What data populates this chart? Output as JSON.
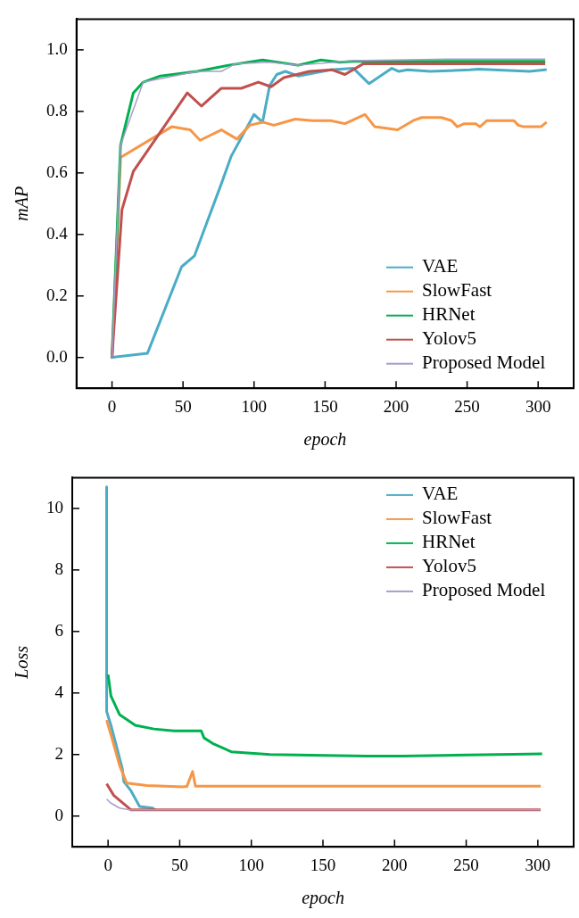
{
  "chart_data": [
    {
      "type": "line",
      "xlabel": "epoch",
      "ylabel": "mAP",
      "xlim": [
        -25,
        325
      ],
      "ylim": [
        -0.1,
        1.1
      ],
      "xticks": [
        0,
        50,
        100,
        150,
        200,
        250,
        300
      ],
      "yticks": [
        {
          "value": 0,
          "label": "0.0"
        },
        0.2,
        0.4,
        0.6,
        0.8,
        {
          "value": 1,
          "label": "1.0"
        }
      ],
      "legend": "bottom right",
      "series": [
        {
          "name": "VAE",
          "color": "#4bacc6",
          "x": [
            -1,
            25,
            49,
            58,
            77,
            84,
            100,
            106,
            111,
            116,
            122,
            131,
            154,
            170,
            181,
            197,
            202,
            208,
            224,
            252,
            258,
            294,
            306
          ],
          "values": [
            0.0,
            0.014,
            0.295,
            0.33,
            0.565,
            0.655,
            0.79,
            0.765,
            0.884,
            0.92,
            0.93,
            0.915,
            0.935,
            0.94,
            0.89,
            0.94,
            0.93,
            0.935,
            0.93,
            0.935,
            0.937,
            0.93,
            0.936
          ]
        },
        {
          "name": "SlowFast",
          "color": "#f79646",
          "x": [
            0,
            6,
            42,
            55,
            62,
            77,
            88,
            97,
            106,
            114,
            129,
            141,
            154,
            164,
            178,
            185,
            201,
            212,
            218,
            232,
            239,
            243,
            248,
            256,
            259,
            264,
            283,
            286,
            290,
            302,
            306
          ],
          "values": [
            0.0,
            0.65,
            0.75,
            0.74,
            0.706,
            0.74,
            0.71,
            0.755,
            0.765,
            0.755,
            0.775,
            0.77,
            0.77,
            0.76,
            0.79,
            0.75,
            0.74,
            0.77,
            0.78,
            0.78,
            0.77,
            0.75,
            0.76,
            0.76,
            0.75,
            0.77,
            0.77,
            0.755,
            0.75,
            0.75,
            0.765
          ]
        },
        {
          "name": "HRNet",
          "color": "#00b050",
          "x": [
            0,
            6,
            15,
            22,
            34,
            60,
            82,
            106,
            131,
            147,
            160,
            170,
            305
          ],
          "values": [
            0.0,
            0.69,
            0.86,
            0.895,
            0.915,
            0.93,
            0.95,
            0.967,
            0.95,
            0.967,
            0.96,
            0.963,
            0.963
          ]
        },
        {
          "name": "Yolov5",
          "color": "#c0504d",
          "x": [
            0,
            7,
            15,
            53,
            63,
            77,
            91,
            103,
            112,
            121,
            139,
            155,
            164,
            177,
            305
          ],
          "values": [
            0.0,
            0.48,
            0.605,
            0.86,
            0.817,
            0.875,
            0.875,
            0.895,
            0.88,
            0.91,
            0.93,
            0.935,
            0.92,
            0.955,
            0.955
          ]
        },
        {
          "name": "Proposed Model",
          "color": "#a99bcc",
          "x": [
            0,
            6,
            22,
            60,
            77,
            87,
            111,
            131,
            170,
            236,
            305
          ],
          "values": [
            0.0,
            0.69,
            0.895,
            0.93,
            0.93,
            0.955,
            0.96,
            0.95,
            0.965,
            0.97,
            0.97
          ]
        }
      ]
    },
    {
      "type": "line",
      "xlabel": "epoch",
      "ylabel": "Loss",
      "xlim": [
        -25,
        325
      ],
      "ylim": [
        -1,
        11
      ],
      "xticks": [
        0,
        50,
        100,
        150,
        200,
        250,
        300
      ],
      "yticks": [
        0,
        2,
        4,
        6,
        8,
        10
      ],
      "legend": "top right",
      "series": [
        {
          "name": "VAE",
          "color": "#4bacc6",
          "x": [
            -1,
            -1,
            2,
            6,
            10,
            11,
            16,
            22,
            31,
            33
          ],
          "values": [
            10.7,
            3.4,
            2.95,
            2.24,
            1.53,
            1.12,
            0.82,
            0.31,
            0.26,
            0.2
          ]
        },
        {
          "name": "SlowFast",
          "color": "#f79646",
          "x": [
            -1,
            3,
            8,
            13,
            27,
            52,
            55,
            59,
            61,
            302
          ],
          "values": [
            3.12,
            2.48,
            1.65,
            1.07,
            0.99,
            0.95,
            0.96,
            1.45,
            0.97,
            0.97
          ]
        },
        {
          "name": "HRNet",
          "color": "#00b050",
          "x": [
            0,
            2,
            8,
            19,
            32,
            46,
            65,
            67,
            73,
            86,
            113,
            180,
            206,
            303
          ],
          "values": [
            4.6,
            3.9,
            3.3,
            2.95,
            2.83,
            2.77,
            2.77,
            2.54,
            2.36,
            2.09,
            2.0,
            1.95,
            1.95,
            2.02
          ]
        },
        {
          "name": "Yolov5",
          "color": "#c0504d",
          "x": [
            -1,
            4,
            12,
            16,
            302
          ],
          "values": [
            1.05,
            0.67,
            0.36,
            0.2,
            0.2
          ]
        },
        {
          "name": "Proposed Model",
          "color": "#a99bcc",
          "x": [
            -1,
            2,
            8,
            15,
            302
          ],
          "values": [
            0.55,
            0.42,
            0.26,
            0.2,
            0.2
          ]
        }
      ]
    }
  ]
}
